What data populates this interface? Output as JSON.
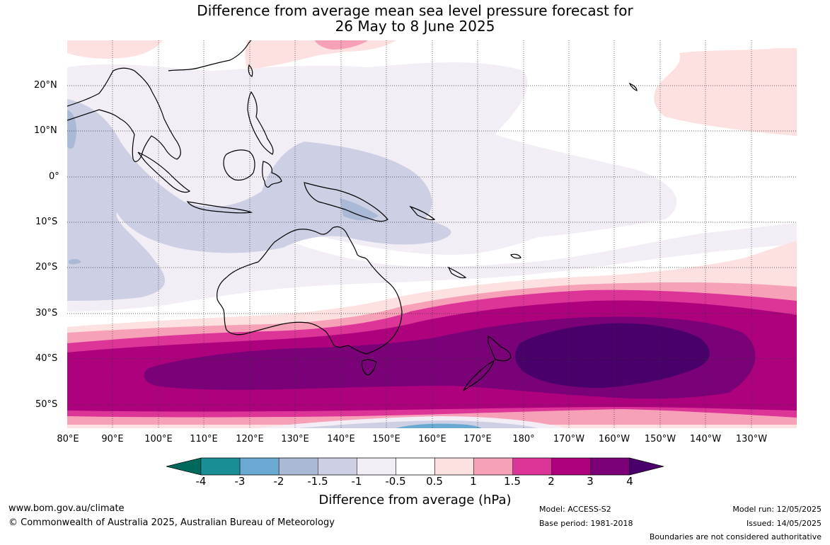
{
  "title": {
    "line1": "Difference from average mean sea level pressure forecast for",
    "line2": "26 May to 8 June 2025"
  },
  "map": {
    "lat_labels": [
      "20°N",
      "10°N",
      "0°",
      "10°S",
      "20°S",
      "30°S",
      "40°S",
      "50°S"
    ],
    "lon_labels": [
      "80°E",
      "90°E",
      "100°E",
      "110°E",
      "120°E",
      "130°E",
      "140°E",
      "150°E",
      "160°E",
      "170°E",
      "180°",
      "170°W",
      "160°W",
      "150°W",
      "140°W",
      "130°W"
    ],
    "colors": {
      "m4": "#00695c",
      "m3": "#1a8e96",
      "m2": "#6aaad2",
      "m15": "#a9b9d6",
      "m1": "#cdd0e4",
      "m05": "#f3eef6",
      "zero": "#ffffff",
      "p05": "#fde0e0",
      "p1": "#f7a1b9",
      "p15": "#dd3497",
      "p2": "#ae017e",
      "p3": "#7a0177",
      "p4": "#49006a"
    }
  },
  "legend": {
    "ticks": [
      "-4",
      "-3",
      "-2",
      "-1.5",
      "-1",
      "-0.5",
      "0.5",
      "1",
      "1.5",
      "2",
      "3",
      "4"
    ],
    "title": "Difference from average (hPa)",
    "colors": [
      "#00695c",
      "#1a8e96",
      "#6aaad2",
      "#a9b9d6",
      "#cdd0e4",
      "#f3eef6",
      "#ffffff",
      "#fde0e0",
      "#f7a1b9",
      "#dd3497",
      "#ae017e",
      "#7a0177",
      "#49006a"
    ]
  },
  "footer": {
    "website": "www.bom.gov.au/climate",
    "copyright": "© Commonwealth of Australia 2025, Australian Bureau of Meteorology",
    "model": "Model: ACCESS-S2",
    "base_period": "Base period: 1981-2018",
    "model_run": "Model run: 12/05/2025",
    "issued": "Issued: 14/05/2025",
    "disclaimer": "Boundaries are not considered authoritative"
  }
}
